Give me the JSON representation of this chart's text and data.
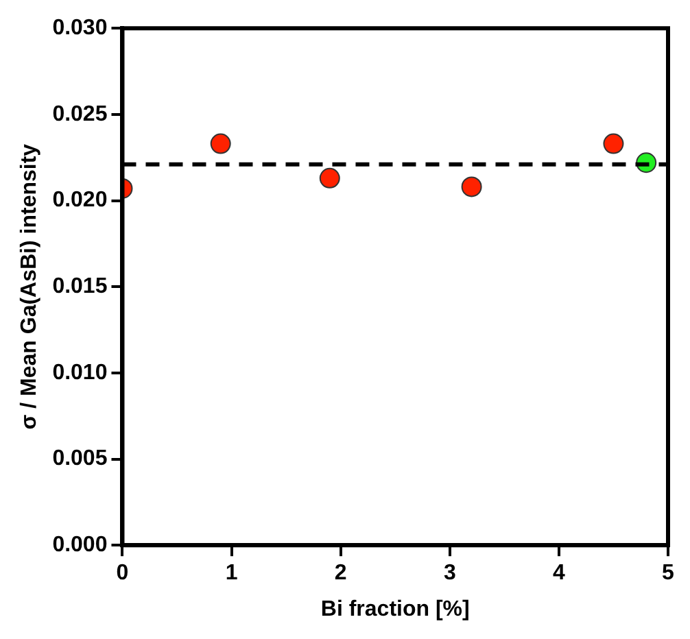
{
  "chart_data": {
    "type": "scatter",
    "xlabel": "Bi fraction [%]",
    "ylabel": "σ / Mean Ga(AsBi) intensity",
    "series": [
      {
        "color": "#ff2200",
        "x": [
          0,
          0.9,
          1.9,
          3.2,
          4.5
        ],
        "values": [
          0.0207,
          0.0233,
          0.0213,
          0.0208,
          0.0233
        ]
      },
      {
        "color": "#22ee22",
        "x": [
          4.8
        ],
        "values": [
          0.0222
        ]
      }
    ],
    "xlim": [
      0,
      5
    ],
    "xticks": [
      0,
      1,
      2,
      3,
      4,
      5
    ],
    "ylim": [
      0,
      0.03
    ],
    "yticks": [
      {
        "value": 0,
        "label": "0.000"
      },
      {
        "value": 0.005,
        "label": "0.005"
      },
      {
        "value": 0.01,
        "label": "0.010"
      },
      {
        "value": 0.015,
        "label": "0.015"
      },
      {
        "value": 0.02,
        "label": "0.020"
      },
      {
        "value": 0.025,
        "label": "0.025"
      },
      {
        "value": 0.03,
        "label": "0.030"
      }
    ],
    "ref_lines": [
      {
        "axis": "y",
        "value": 0.0221,
        "color": "#000000",
        "line_style": "dashed"
      }
    ],
    "grid": false,
    "legend": false,
    "marker": "circle"
  }
}
